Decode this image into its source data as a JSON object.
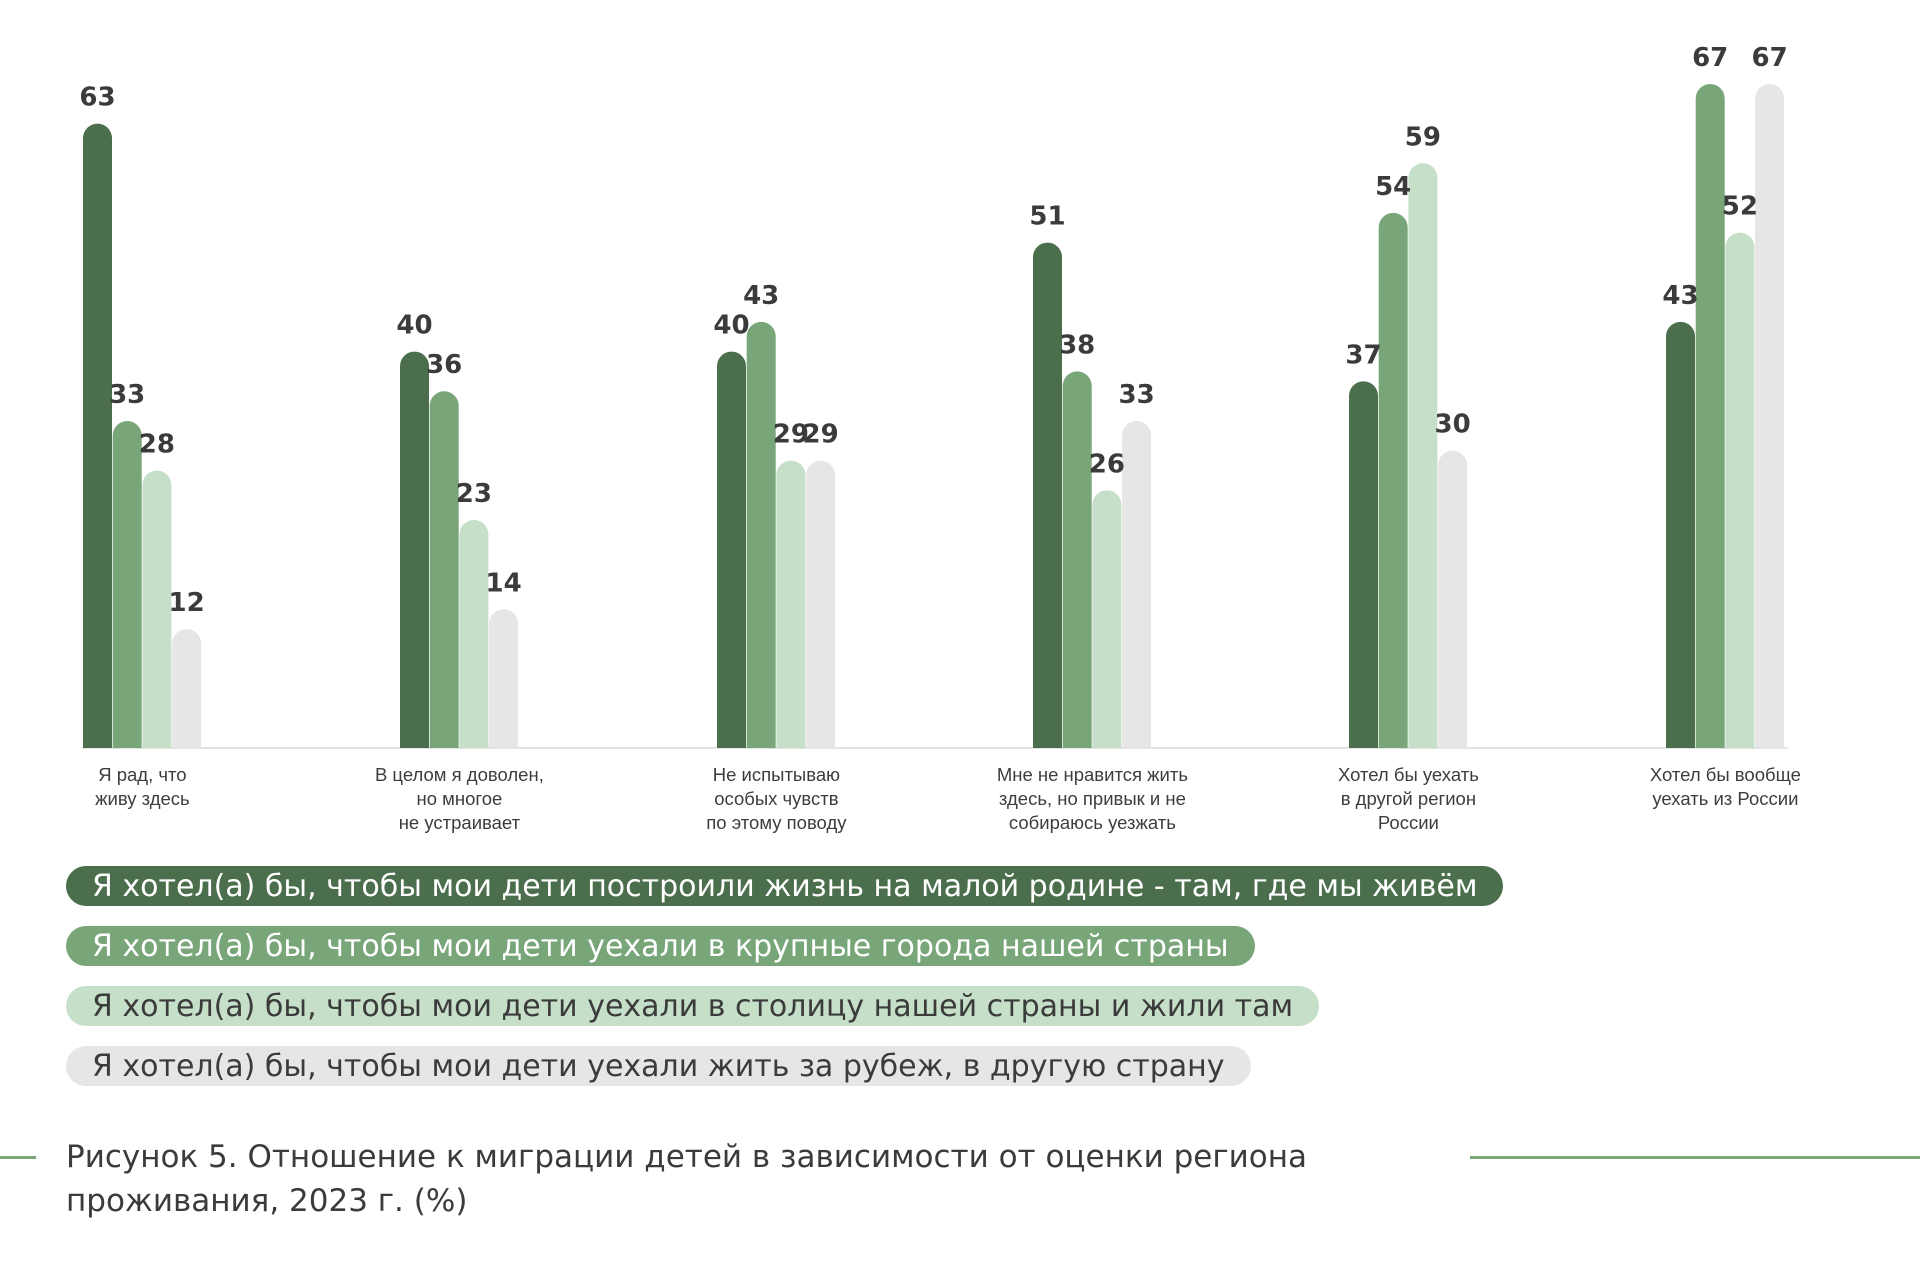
{
  "chart_data": {
    "type": "bar",
    "categories": [
      [
        "Я рад, что",
        "живу здесь"
      ],
      [
        "В целом я доволен,",
        "но многое",
        "не устраивает"
      ],
      [
        "Не испытываю",
        "особых чувств",
        "по этому поводу"
      ],
      [
        "Мне не нравится жить",
        "здесь, но привык и не",
        "собираюсь уезжать"
      ],
      [
        "Хотел бы уехать",
        "в другой регион",
        "России"
      ],
      [
        "Хотел бы вообще",
        "уехать из России"
      ]
    ],
    "series": [
      {
        "name": "Я хотел(а) бы, чтобы мои дети построили жизнь на малой родине - там, где мы живём",
        "color": "#4b6e4c",
        "values": [
          63,
          40,
          40,
          51,
          37,
          43
        ]
      },
      {
        "name": "Я хотел(а) бы, чтобы мои дети уехали в крупные города нашей страны",
        "color": "#79a679",
        "values": [
          33,
          36,
          43,
          38,
          54,
          67
        ]
      },
      {
        "name": "Я хотел(а) бы, чтобы мои дети уехали в столицу нашей страны и жили там",
        "color": "#c5dfc8",
        "values": [
          28,
          23,
          29,
          26,
          59,
          52
        ]
      },
      {
        "name": "Я хотел(а) бы, чтобы мои дети уехали жить за рубеж, в другую страну",
        "color": "#e6e6e6",
        "values": [
          12,
          14,
          29,
          33,
          30,
          67
        ]
      }
    ],
    "legend_text_colors": [
      "#ffffff",
      "#ffffff",
      "#3b3b3b",
      "#3b3b3b"
    ],
    "ylim": [
      0,
      67
    ]
  },
  "caption": {
    "line1": "Рисунок 5. Отношение к миграции детей в зависимости от оценки региона",
    "line2": "проживания, 2023 г. (%)"
  }
}
